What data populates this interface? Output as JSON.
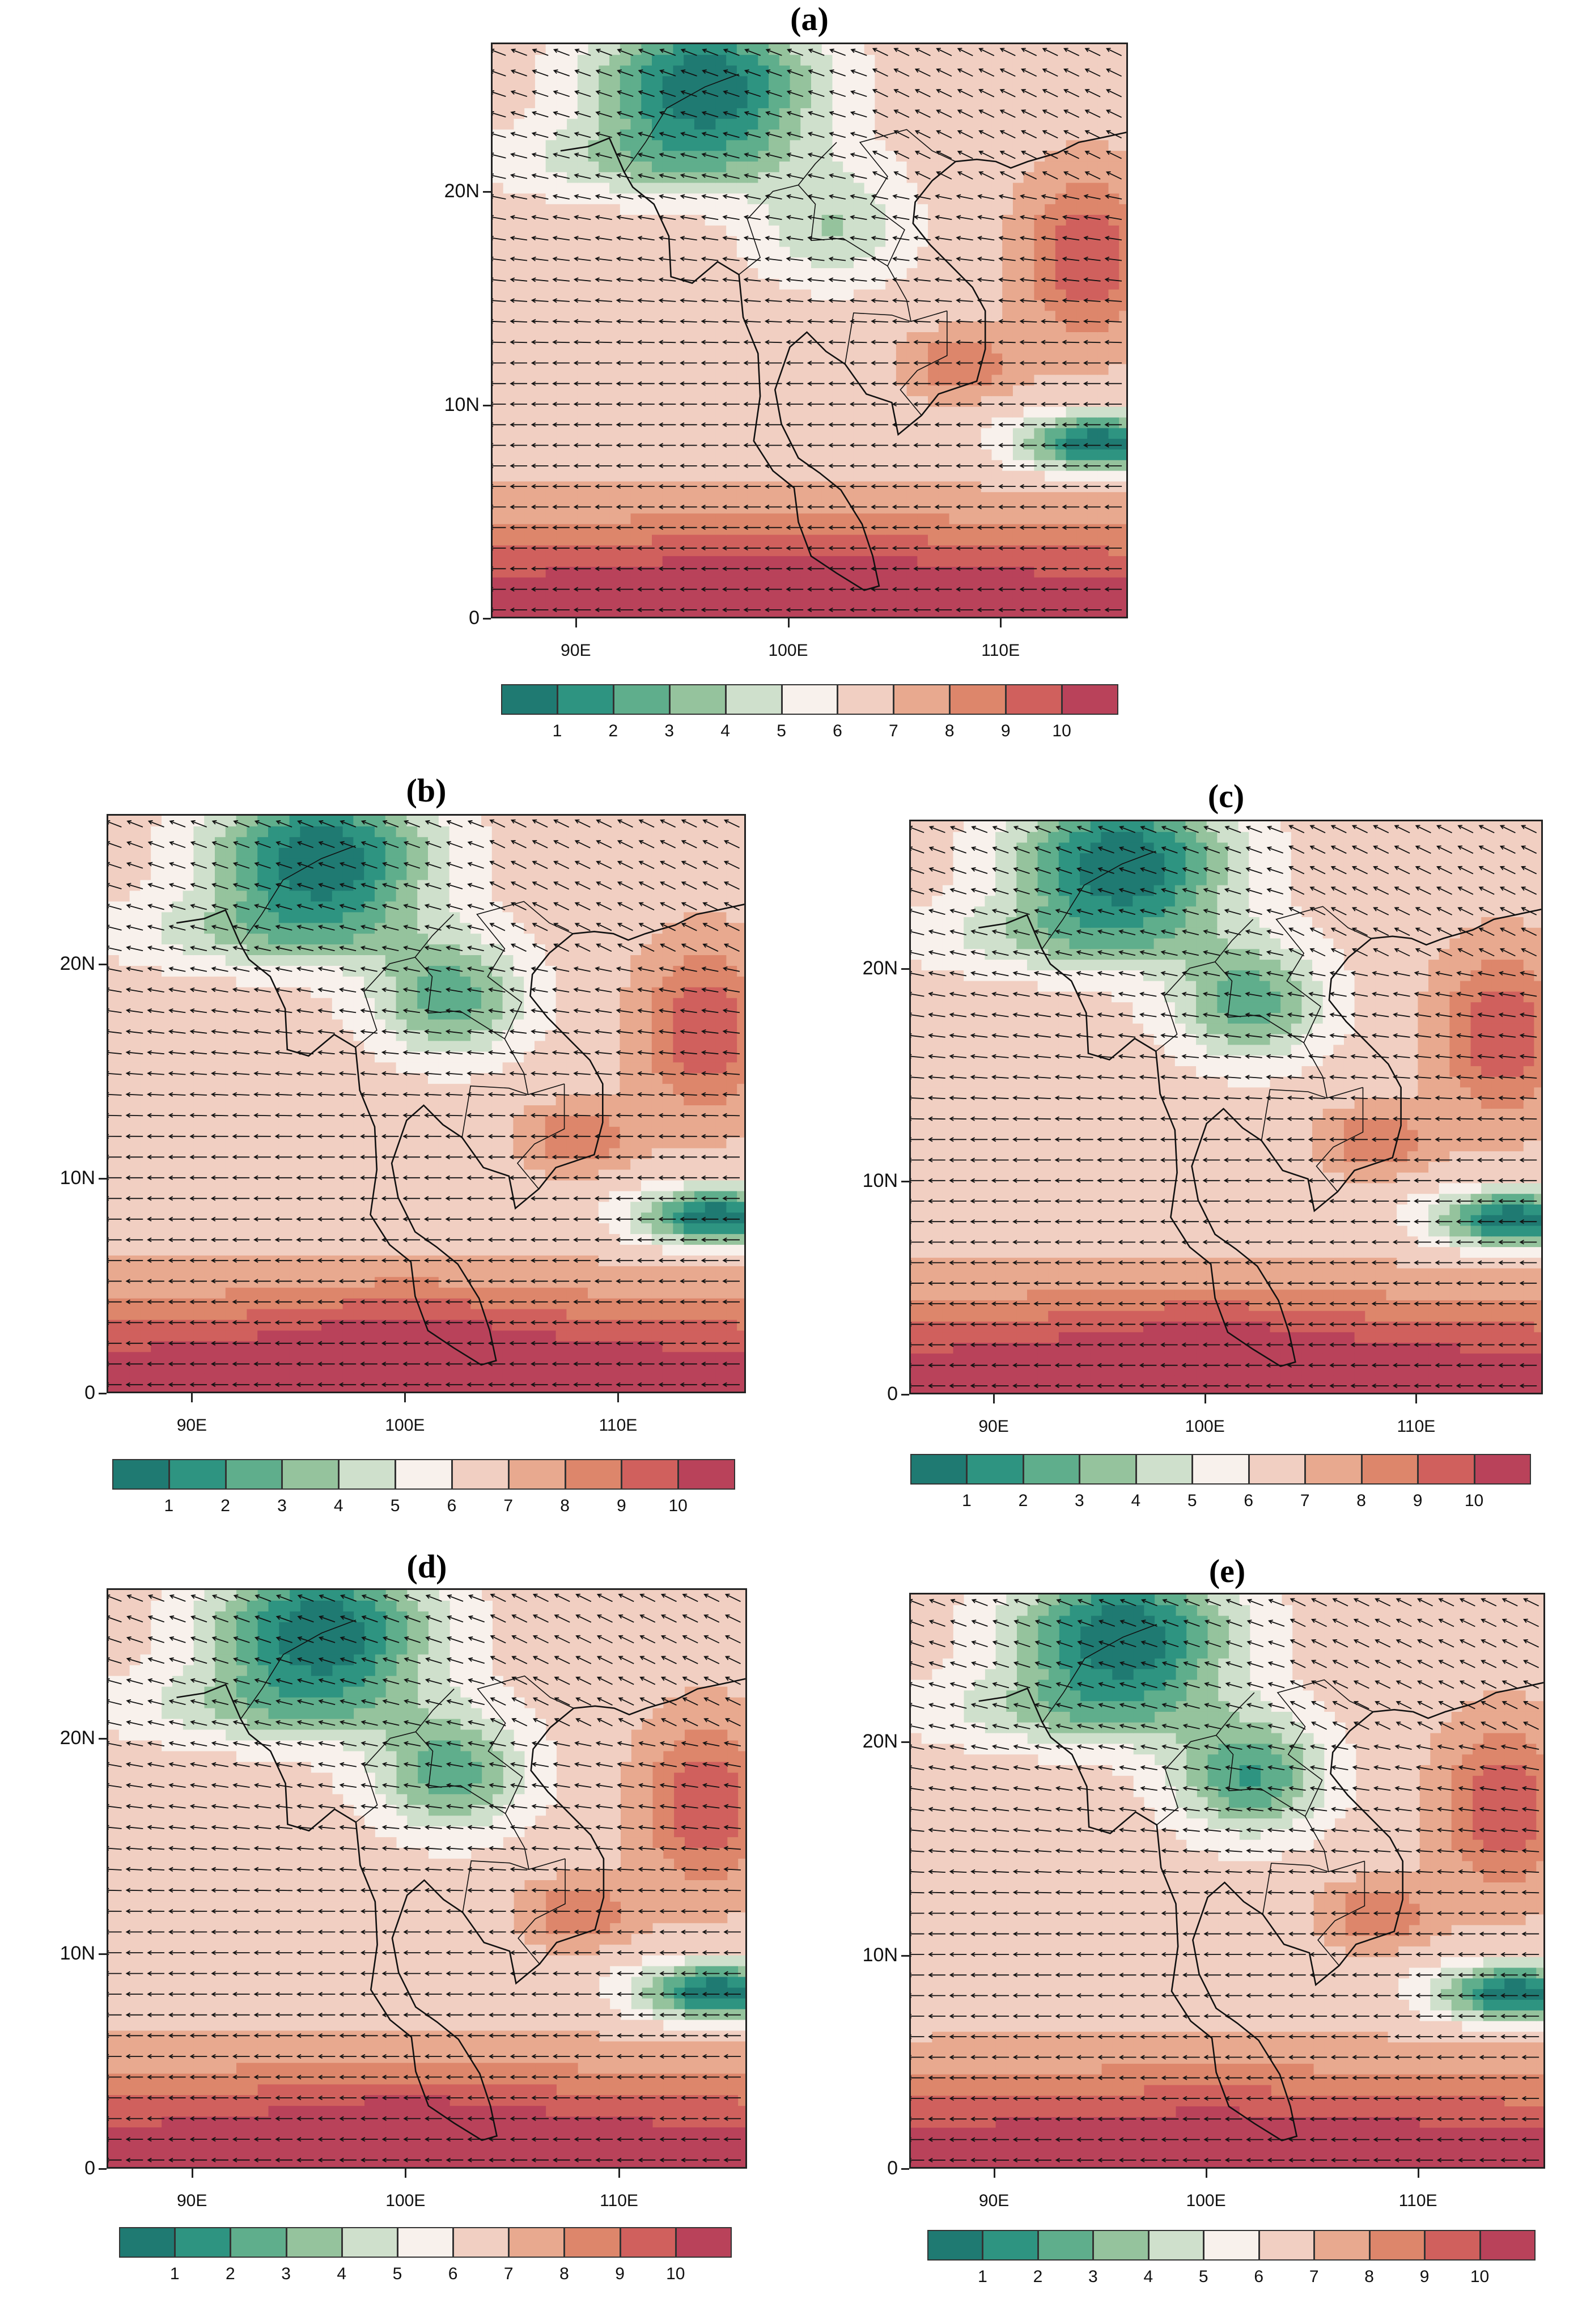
{
  "panels": [
    {
      "id": "a",
      "title": "(a)"
    },
    {
      "id": "b",
      "title": "(b)"
    },
    {
      "id": "c",
      "title": "(c)"
    },
    {
      "id": "d",
      "title": "(d)"
    },
    {
      "id": "e",
      "title": "(e)"
    }
  ],
  "lat_labels": [
    "20N",
    "10N",
    "0"
  ],
  "lon_labels": [
    "90E",
    "100E",
    "110E"
  ],
  "colorbar": {
    "tick_labels": [
      "1",
      "2",
      "3",
      "4",
      "5",
      "6",
      "7",
      "8",
      "9",
      "10"
    ],
    "colors": [
      "#1f7a72",
      "#2e9481",
      "#5fae8c",
      "#95c39d",
      "#cfe0cc",
      "#f8f1ec",
      "#f1cfc2",
      "#e8a98f",
      "#dd866b",
      "#d0605d",
      "#b9425a"
    ]
  },
  "map_extent": {
    "lon_min": 86,
    "lon_max": 116,
    "lat_min": 0,
    "lat_max": 27
  }
}
